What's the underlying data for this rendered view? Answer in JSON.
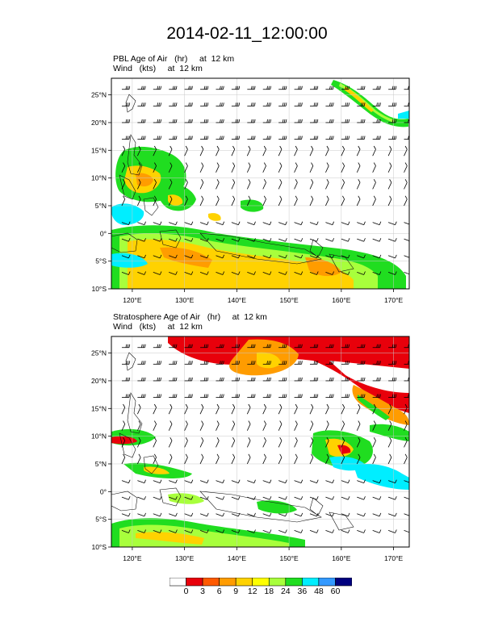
{
  "figure": {
    "title": "2014-02-11_12:00:00"
  },
  "panels": [
    {
      "id": "pbl",
      "label_line1": "PBL Age of Air   (hr)     at  12 km",
      "label_line2": "Wind   (kts)     at  12 km"
    },
    {
      "id": "strat",
      "label_line1": "Stratosphere Age of Air   (hr)     at  12 km",
      "label_line2": "Wind   (kts)     at  12 km"
    }
  ],
  "axes": {
    "lon_range": [
      116,
      173
    ],
    "lat_range": [
      -10,
      28
    ],
    "lon_ticks": [
      "120°E",
      "130°E",
      "140°E",
      "150°E",
      "160°E",
      "170°E"
    ],
    "lat_ticks": [
      "25°N",
      "20°N",
      "15°N",
      "10°N",
      "5°N",
      "0°",
      "5°S",
      "10°S"
    ]
  },
  "colorbar": {
    "labels": [
      "0",
      "3",
      "6",
      "9",
      "12",
      "18",
      "24",
      "36",
      "48",
      "60"
    ],
    "colors": [
      "#ffffff",
      "#e8000b",
      "#ff5a00",
      "#ff9c00",
      "#ffd200",
      "#ffff00",
      "#a8ff3c",
      "#20dd20",
      "#00eeff",
      "#3399ff",
      "#00007f"
    ]
  }
}
